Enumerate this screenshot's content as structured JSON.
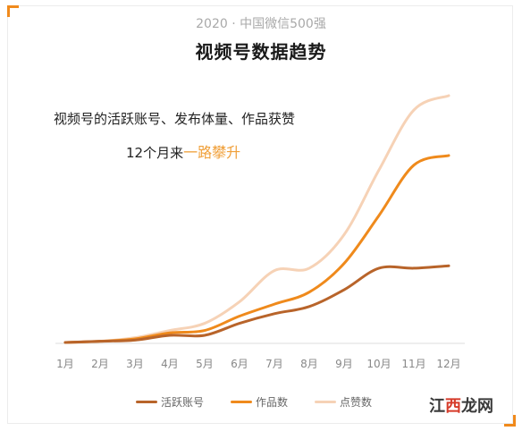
{
  "header": {
    "subtitle": "2020 · 中国微信500强",
    "title": "视频号数据趋势"
  },
  "annotation": {
    "line1": "视频号的活跃账号、发布体量、作品获赞",
    "line2_prefix": "12个月来",
    "line2_highlight": "一路攀升"
  },
  "watermark": {
    "part1": "江",
    "part2": "西",
    "part3": "龙网"
  },
  "chart_data": {
    "type": "line",
    "title": "视频号数据趋势",
    "categories": [
      "1月",
      "2月",
      "3月",
      "4月",
      "5月",
      "6月",
      "7月",
      "8月",
      "9月",
      "10月",
      "11月",
      "12月"
    ],
    "ylim": [
      0,
      100
    ],
    "grid": false,
    "legend": "bottom",
    "series": [
      {
        "name": "活跃账号",
        "color": "#b8642a",
        "values": [
          0,
          0.5,
          1,
          3,
          3,
          8,
          12,
          15,
          22,
          31,
          31,
          32
        ]
      },
      {
        "name": "作品数",
        "color": "#ef8a1c",
        "values": [
          0,
          0.5,
          1.5,
          4,
          5,
          11,
          16,
          21,
          33,
          53,
          74,
          78
        ]
      },
      {
        "name": "点赞数",
        "color": "#f6d2b6",
        "values": [
          0,
          0.5,
          2,
          5,
          8,
          17,
          30,
          31,
          45,
          72,
          97,
          103
        ]
      }
    ]
  }
}
